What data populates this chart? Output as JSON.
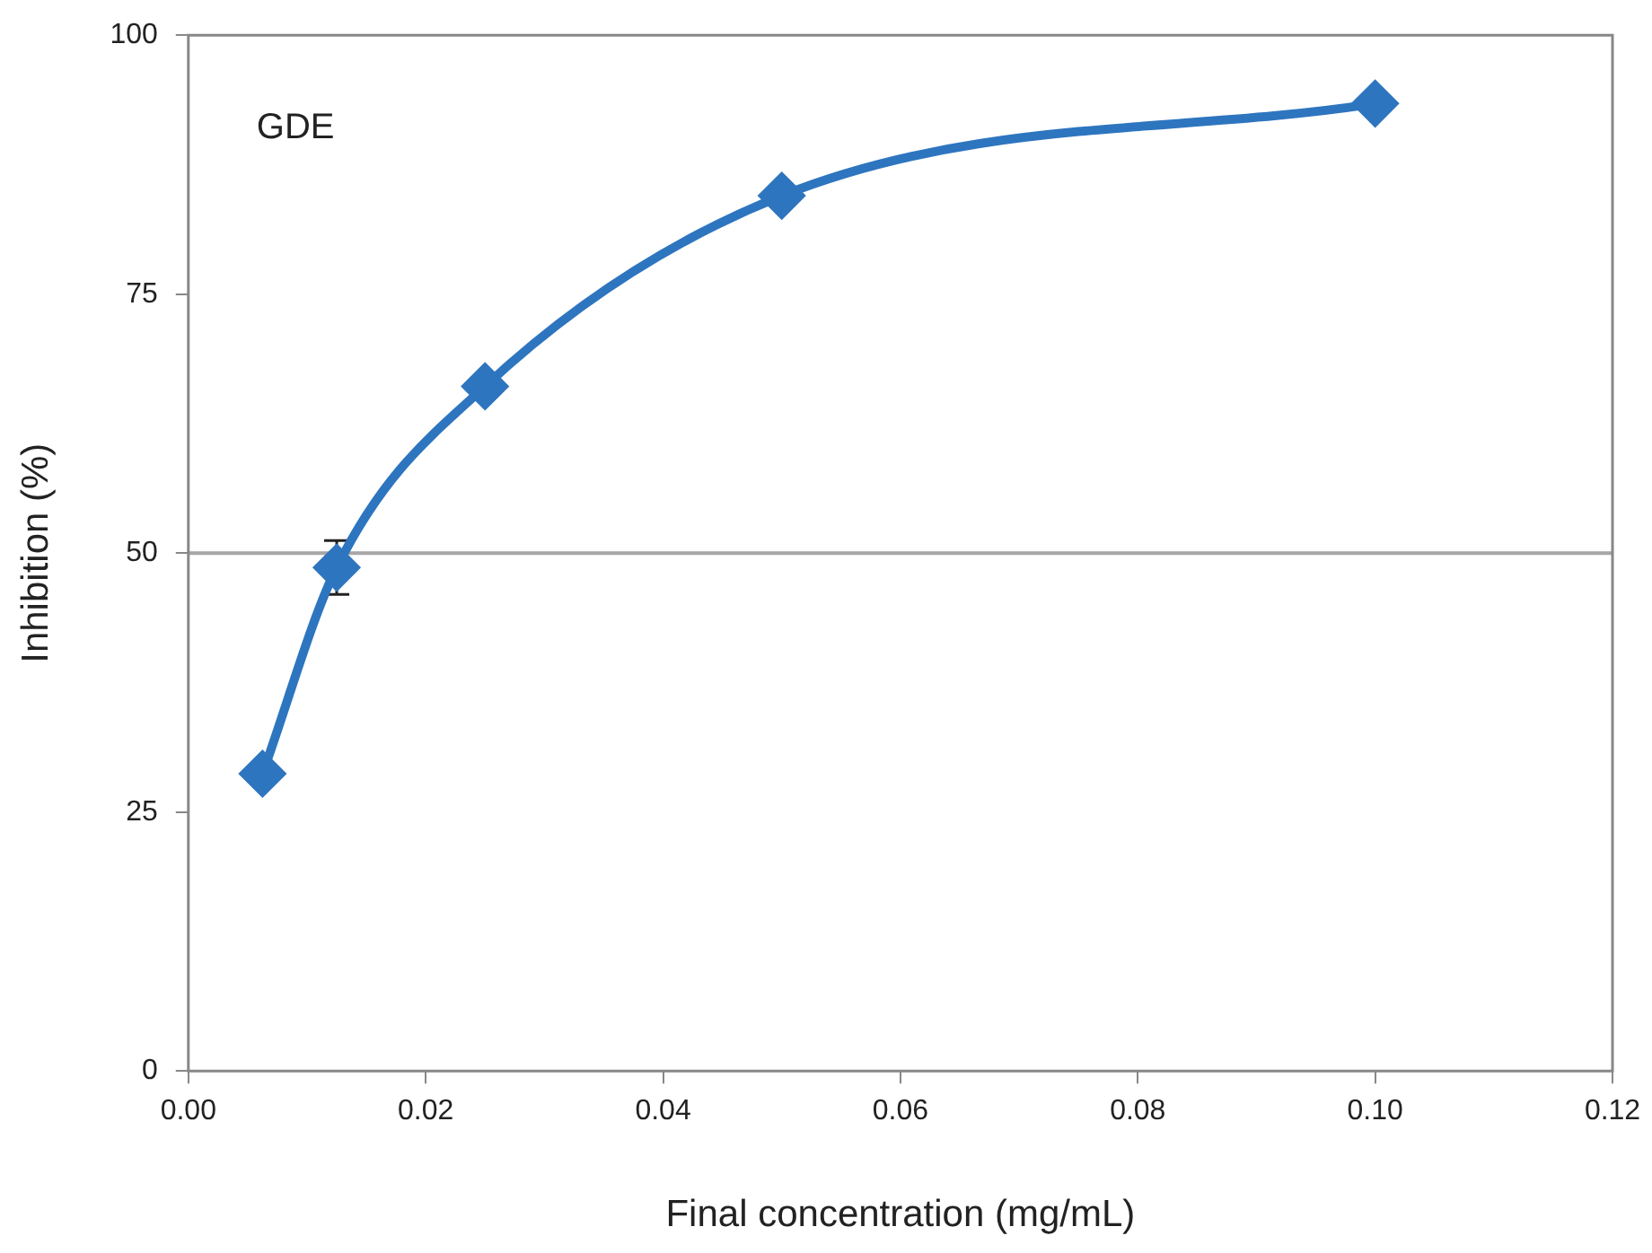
{
  "chart_data": {
    "type": "line",
    "xlabel": "Final concentration (mg/mL)",
    "ylabel": "Inhibition (%)",
    "annotations": [
      "GDE"
    ],
    "x": [
      0.00625,
      0.0125,
      0.025,
      0.05,
      0.1
    ],
    "series": [
      {
        "color": "#2e75bf",
        "values": [
          28.7,
          48.6,
          66.1,
          84.5,
          93.4
        ],
        "errors": [
          null,
          2.6,
          null,
          null,
          null
        ]
      }
    ],
    "xlim": [
      0,
      0.12
    ],
    "xticks": [
      {
        "value": 0,
        "label": "0.00"
      },
      {
        "value": 0.02,
        "label": "0.02"
      },
      {
        "value": 0.04,
        "label": "0.04"
      },
      {
        "value": 0.06,
        "label": "0.06"
      },
      {
        "value": 0.08,
        "label": "0.08"
      },
      {
        "value": 0.1,
        "label": "0.10"
      },
      {
        "value": 0.12,
        "label": "0.12"
      }
    ],
    "ylim": [
      0,
      100
    ],
    "yticks": [
      0,
      25,
      50,
      75,
      100
    ],
    "ref_lines": [
      {
        "axis": "y",
        "value": 50,
        "color": "#a6a6a6"
      }
    ],
    "grid": false,
    "legend": false,
    "marker": "diamond",
    "line_style": "solid"
  }
}
